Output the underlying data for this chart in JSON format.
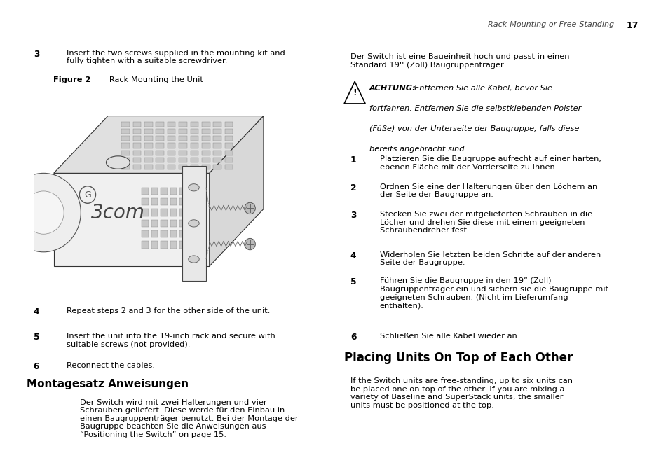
{
  "bg_color": "#ffffff",
  "header_italic": "Rack-Mounting or Free-Standing",
  "header_page": "17",
  "left_col": {
    "step3_label": "3",
    "step3_text": "Insert the two screws supplied in the mounting kit and\nfully tighten with a suitable screwdriver.",
    "figure_label": "Figure 2",
    "figure_caption": "Rack Mounting the Unit",
    "step4_label": "4",
    "step4_text": "Repeat steps 2 and 3 for the other side of the unit.",
    "step5_label": "5",
    "step5_text": "Insert the unit into the 19-inch rack and secure with\nsuitable screws (not provided).",
    "step6_label": "6",
    "step6_text": "Reconnect the cables.",
    "section_title": "Montagesatz Anweisungen",
    "section_para": "Der Switch wird mit zwei Halterungen und vier\nSchrauben geliefert. Diese werde für den Einbau in\neinen Baugruppenträger benutzt. Bei der Montage der\nBaugruppe beachten Sie die Anweisungen aus\n“Positioning the Switch” on page 15."
  },
  "right_col": {
    "para1": "Der Switch ist eine Baueinheit hoch und passt in einen\nStandard 19'' (Zoll) Baugruppenträger.",
    "warning_bold": "ACHTUNG:",
    "warning_rest": " Entfernen Sie alle Kabel, bevor Sie\nfortfahren. Entfernen Sie die selbstklebenden Polster\n(Füße) von der Unterseite der Baugruppe, falls diese\nbereits angebracht sind.",
    "step1_label": "1",
    "step1_text": "Platzieren Sie die Baugruppe aufrecht auf einer harten,\nebenen Fläche mit der Vorderseite zu Ihnen.",
    "step2_label": "2",
    "step2_text": "Ordnen Sie eine der Halterungen über den Löchern an\nder Seite der Baugruppe an.",
    "step3_label": "3",
    "step3_text": "Stecken Sie zwei der mitgelieferten Schrauben in die\nLöcher und drehen Sie diese mit einem geeigneten\nSchraubendreher fest.",
    "step4_label": "4",
    "step4_text": "Widerholen Sie letzten beiden Schritte auf der anderen\nSeite der Baugruppe.",
    "step5_label": "5",
    "step5_text": "Führen Sie die Baugruppe in den 19” (Zoll)\nBaugruppenträger ein und sichern sie die Baugruppe mit\ngeeigneten Schrauben. (Nicht im Lieferumfang\nenthalten).",
    "step6_label": "6",
    "step6_text": "Schließen Sie alle Kabel wieder an.",
    "section_title": "Placing Units On Top of Each Other",
    "section_para": "If the Switch units are free-standing, up to six units can\nbe placed one on top of the other. If you are mixing a\nvariety of Baseline and SuperStack units, the smaller\nunits must be positioned at the top."
  }
}
